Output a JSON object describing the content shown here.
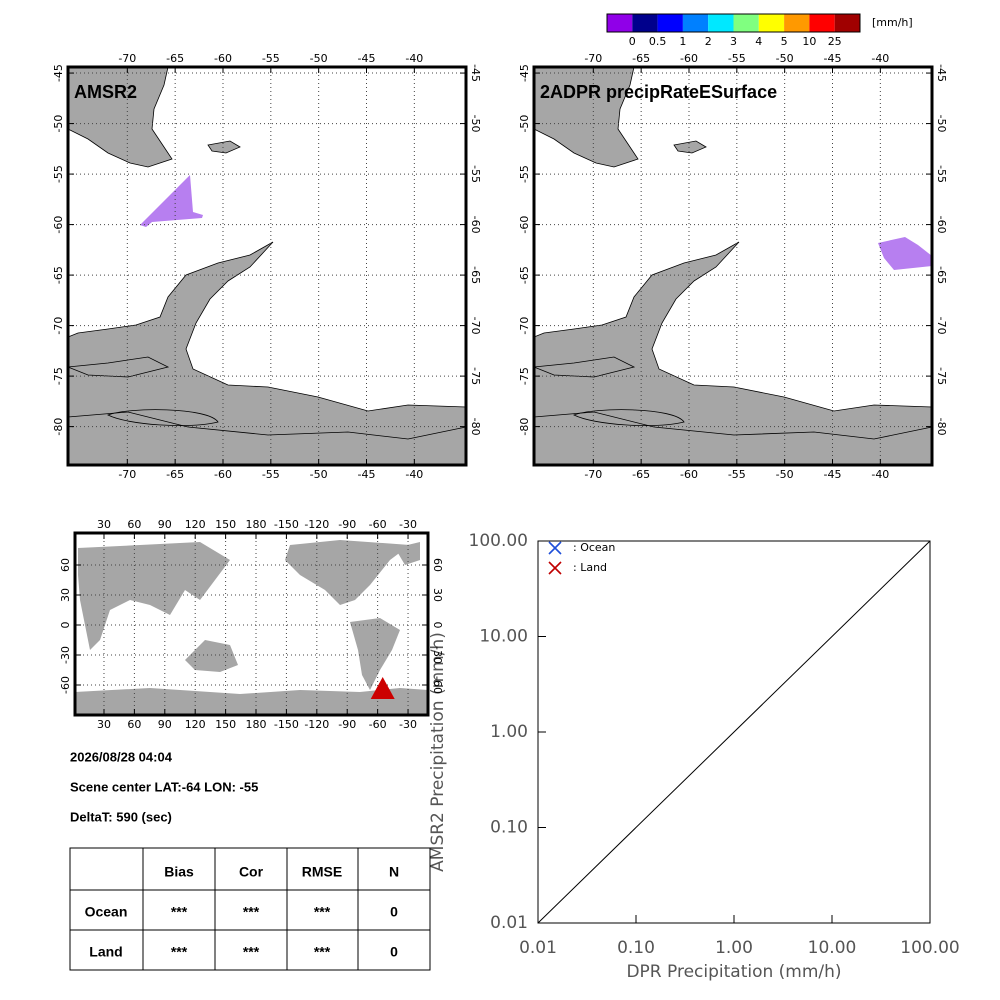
{
  "colorbar": {
    "colors": [
      "#9000e8",
      "#00008c",
      "#0000ff",
      "#0080ff",
      "#00e8ff",
      "#80ff80",
      "#ffff00",
      "#ff9900",
      "#ff0000",
      "#a00000"
    ],
    "labels": [
      "0",
      "0.5",
      "1",
      "2",
      "3",
      "4",
      "5",
      "10",
      "25"
    ],
    "unit": "[mm/h]"
  },
  "maps": [
    {
      "title": "AMSR2"
    },
    {
      "title": "2ADPR precipRateESurface"
    }
  ],
  "map_axes": {
    "lon_ticks": [
      -70,
      -65,
      -60,
      -55,
      -50,
      -45,
      -40
    ],
    "lat_ticks": [
      -45,
      -50,
      -55,
      -60,
      -65,
      -70,
      -75,
      -80
    ],
    "lonlim": [
      -76.2,
      -34.6
    ],
    "latlim": [
      -44.4,
      -83.8
    ]
  },
  "world_map": {
    "lon_ticks": [
      30,
      60,
      90,
      120,
      150,
      180,
      -150,
      -120,
      -90,
      -60,
      -30
    ],
    "lat_ticks": [
      60,
      30,
      0,
      -30,
      -60
    ],
    "lonlim": [
      1.4,
      349.7
    ],
    "latlim": [
      92,
      -90
    ],
    "scene_center": {
      "lat": -64,
      "lon": -55
    },
    "marker_color": "#cc0000"
  },
  "info": {
    "datetime": "2026/08/28 04:04",
    "scene": "Scene center LAT:-64   LON: -55",
    "delta": "DeltaT:  590 (sec)"
  },
  "table": {
    "columns": [
      "Bias",
      "Cor",
      "RMSE",
      "N"
    ],
    "rows": [
      {
        "label": "Ocean",
        "cells": [
          "***",
          "***",
          "***",
          0
        ]
      },
      {
        "label": "Land",
        "cells": [
          "***",
          "***",
          "***",
          0
        ]
      }
    ]
  },
  "chart_data": {
    "type": "scatter",
    "xlabel": "DPR Precipitation (mm/h)",
    "ylabel": "AMSR2 Precipitation (mm/h)",
    "log_scale": true,
    "xlim": [
      0.01,
      100
    ],
    "ylim": [
      0.01,
      100
    ],
    "xticks": [
      0.01,
      {
        "value": 0.1,
        "label": "0.10"
      },
      {
        "value": 1,
        "label": "1.00"
      },
      {
        "value": 10,
        "label": "10.00"
      },
      {
        "value": 100,
        "label": "100.00"
      }
    ],
    "yticks": [
      0.01,
      {
        "value": 0.1,
        "label": "0.10"
      },
      {
        "value": 1,
        "label": "1.00"
      },
      {
        "value": 10,
        "label": "10.00"
      },
      {
        "value": 100,
        "label": "100.00"
      }
    ],
    "series": [
      {
        "name": ": Ocean",
        "color": "#1f4fd8",
        "x": [],
        "values": []
      },
      {
        "name": ": Land",
        "color": "#c00000",
        "x": [],
        "values": []
      }
    ]
  }
}
